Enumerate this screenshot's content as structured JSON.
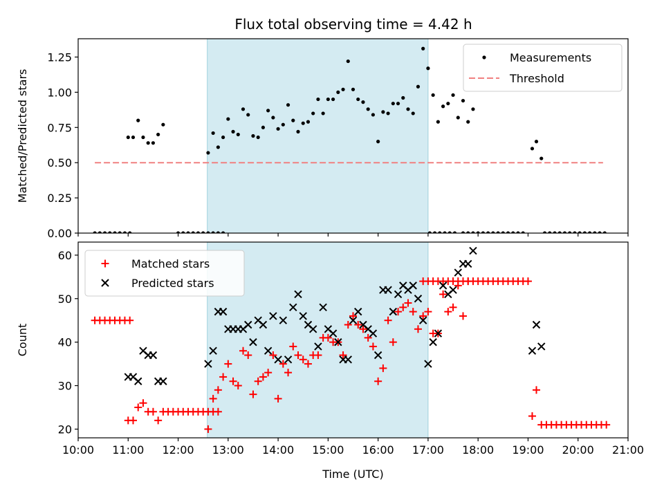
{
  "title": "Flux total observing time = 4.42 h",
  "chart_data": [
    {
      "type": "scatter",
      "ylabel": "Matched/Predicted stars",
      "xlim": [
        "10:00",
        "21:00"
      ],
      "ylim": [
        0,
        1.38
      ],
      "yticks": [
        "0.00",
        "0.25",
        "0.50",
        "0.75",
        "1.00",
        "1.25"
      ],
      "shaded_interval": [
        "12:35",
        "17:00"
      ],
      "legend": [
        "Measurements",
        "Threshold"
      ],
      "legend_position": "top-right",
      "colors": {
        "measurements": "#000000",
        "threshold": "#f08080",
        "shade": "#add8e6"
      },
      "threshold": {
        "value": 0.5,
        "x_range": [
          "10:20",
          "20:30"
        ]
      },
      "measurements": [
        [
          "10:20",
          0
        ],
        [
          "10:26",
          0
        ],
        [
          "10:32",
          0
        ],
        [
          "10:38",
          0
        ],
        [
          "10:44",
          0
        ],
        [
          "10:50",
          0
        ],
        [
          "10:56",
          0
        ],
        [
          "11:02",
          0
        ],
        [
          "11:00",
          0.68
        ],
        [
          "11:06",
          0.68
        ],
        [
          "11:12",
          0.8
        ],
        [
          "11:18",
          0.68
        ],
        [
          "11:24",
          0.64
        ],
        [
          "11:30",
          0.64
        ],
        [
          "11:36",
          0.7
        ],
        [
          "11:42",
          0.77
        ],
        [
          "12:00",
          0
        ],
        [
          "12:06",
          0
        ],
        [
          "12:12",
          0
        ],
        [
          "12:18",
          0
        ],
        [
          "12:24",
          0
        ],
        [
          "12:30",
          0
        ],
        [
          "12:36",
          0
        ],
        [
          "12:42",
          0
        ],
        [
          "12:48",
          0
        ],
        [
          "12:54",
          0
        ],
        [
          "12:36",
          0.57
        ],
        [
          "12:42",
          0.71
        ],
        [
          "12:48",
          0.61
        ],
        [
          "12:54",
          0.68
        ],
        [
          "13:00",
          0.81
        ],
        [
          "13:06",
          0.72
        ],
        [
          "13:12",
          0.7
        ],
        [
          "13:18",
          0.88
        ],
        [
          "13:24",
          0.84
        ],
        [
          "13:30",
          0.69
        ],
        [
          "13:36",
          0.68
        ],
        [
          "13:42",
          0.75
        ],
        [
          "13:48",
          0.87
        ],
        [
          "13:54",
          0.82
        ],
        [
          "14:00",
          0.74
        ],
        [
          "14:06",
          0.77
        ],
        [
          "14:12",
          0.91
        ],
        [
          "14:18",
          0.8
        ],
        [
          "14:24",
          0.72
        ],
        [
          "14:30",
          0.78
        ],
        [
          "14:36",
          0.79
        ],
        [
          "14:42",
          0.85
        ],
        [
          "14:48",
          0.95
        ],
        [
          "14:54",
          0.85
        ],
        [
          "15:00",
          0.95
        ],
        [
          "15:06",
          0.95
        ],
        [
          "15:12",
          1.0
        ],
        [
          "15:18",
          1.02
        ],
        [
          "15:24",
          1.22
        ],
        [
          "15:30",
          1.02
        ],
        [
          "15:36",
          0.95
        ],
        [
          "15:42",
          0.93
        ],
        [
          "15:48",
          0.88
        ],
        [
          "15:54",
          0.84
        ],
        [
          "16:00",
          0.65
        ],
        [
          "16:06",
          0.86
        ],
        [
          "16:12",
          0.85
        ],
        [
          "16:18",
          0.92
        ],
        [
          "16:24",
          0.92
        ],
        [
          "16:30",
          0.96
        ],
        [
          "16:36",
          0.88
        ],
        [
          "16:42",
          0.85
        ],
        [
          "16:48",
          1.04
        ],
        [
          "16:54",
          1.31
        ],
        [
          "17:00",
          1.17
        ],
        [
          "17:06",
          0.98
        ],
        [
          "17:12",
          0.79
        ],
        [
          "17:18",
          0.9
        ],
        [
          "17:24",
          0.92
        ],
        [
          "17:30",
          0.98
        ],
        [
          "17:36",
          0.82
        ],
        [
          "17:42",
          0.94
        ],
        [
          "17:48",
          0.79
        ],
        [
          "17:54",
          0.88
        ],
        [
          "17:02",
          0
        ],
        [
          "17:08",
          0
        ],
        [
          "17:14",
          0
        ],
        [
          "17:20",
          0
        ],
        [
          "17:26",
          0
        ],
        [
          "17:32",
          0
        ],
        [
          "17:42",
          0
        ],
        [
          "17:48",
          0
        ],
        [
          "17:54",
          0
        ],
        [
          "18:00",
          0
        ],
        [
          "18:06",
          0
        ],
        [
          "18:12",
          0
        ],
        [
          "18:18",
          0
        ],
        [
          "18:24",
          0
        ],
        [
          "18:30",
          0
        ],
        [
          "18:36",
          0
        ],
        [
          "18:42",
          0
        ],
        [
          "18:48",
          0
        ],
        [
          "18:54",
          0
        ],
        [
          "19:05",
          0.6
        ],
        [
          "19:10",
          0.65
        ],
        [
          "19:16",
          0.53
        ],
        [
          "19:20",
          0
        ],
        [
          "19:26",
          0
        ],
        [
          "19:32",
          0
        ],
        [
          "19:38",
          0
        ],
        [
          "19:44",
          0
        ],
        [
          "19:50",
          0
        ],
        [
          "19:56",
          0
        ],
        [
          "20:02",
          0
        ],
        [
          "20:08",
          0
        ],
        [
          "20:14",
          0
        ],
        [
          "20:20",
          0
        ],
        [
          "20:26",
          0
        ],
        [
          "20:32",
          0
        ]
      ]
    },
    {
      "type": "scatter",
      "xlabel": "Time (UTC)",
      "ylabel": "Count",
      "xlim": [
        "10:00",
        "21:00"
      ],
      "ylim": [
        18,
        63
      ],
      "yticks": [
        "20",
        "30",
        "40",
        "50",
        "60"
      ],
      "xticks": [
        "10:00",
        "11:00",
        "12:00",
        "13:00",
        "14:00",
        "15:00",
        "16:00",
        "17:00",
        "18:00",
        "19:00",
        "20:00",
        "21:00"
      ],
      "shaded_interval": [
        "12:35",
        "17:00"
      ],
      "legend": [
        "Matched stars",
        "Predicted stars"
      ],
      "legend_position": "top-left",
      "colors": {
        "matched": "#ff0000",
        "predicted": "#000000",
        "shade": "#add8e6"
      },
      "matched": [
        [
          "10:20",
          45
        ],
        [
          "10:26",
          45
        ],
        [
          "10:32",
          45
        ],
        [
          "10:38",
          45
        ],
        [
          "10:44",
          45
        ],
        [
          "10:50",
          45
        ],
        [
          "10:56",
          45
        ],
        [
          "11:02",
          45
        ],
        [
          "11:00",
          22
        ],
        [
          "11:06",
          22
        ],
        [
          "11:12",
          25
        ],
        [
          "11:18",
          26
        ],
        [
          "11:24",
          24
        ],
        [
          "11:30",
          24
        ],
        [
          "11:36",
          22
        ],
        [
          "11:42",
          24
        ],
        [
          "11:48",
          24
        ],
        [
          "11:54",
          24
        ],
        [
          "12:00",
          24
        ],
        [
          "12:06",
          24
        ],
        [
          "12:12",
          24
        ],
        [
          "12:18",
          24
        ],
        [
          "12:24",
          24
        ],
        [
          "12:30",
          24
        ],
        [
          "12:36",
          24
        ],
        [
          "12:42",
          24
        ],
        [
          "12:48",
          24
        ],
        [
          "12:36",
          20
        ],
        [
          "12:42",
          27
        ],
        [
          "12:48",
          29
        ],
        [
          "12:54",
          32
        ],
        [
          "13:00",
          35
        ],
        [
          "13:06",
          31
        ],
        [
          "13:12",
          30
        ],
        [
          "13:18",
          38
        ],
        [
          "13:24",
          37
        ],
        [
          "13:30",
          28
        ],
        [
          "13:36",
          31
        ],
        [
          "13:42",
          32
        ],
        [
          "13:48",
          33
        ],
        [
          "13:54",
          37
        ],
        [
          "14:00",
          27
        ],
        [
          "14:06",
          35
        ],
        [
          "14:12",
          33
        ],
        [
          "14:18",
          39
        ],
        [
          "14:24",
          37
        ],
        [
          "14:30",
          36
        ],
        [
          "14:36",
          35
        ],
        [
          "14:42",
          37
        ],
        [
          "14:48",
          37
        ],
        [
          "14:54",
          41
        ],
        [
          "15:00",
          41
        ],
        [
          "15:06",
          40
        ],
        [
          "15:12",
          40
        ],
        [
          "15:18",
          37
        ],
        [
          "15:24",
          44
        ],
        [
          "15:30",
          46
        ],
        [
          "15:36",
          44
        ],
        [
          "15:42",
          43
        ],
        [
          "15:48",
          41
        ],
        [
          "15:54",
          39
        ],
        [
          "16:00",
          31
        ],
        [
          "16:06",
          34
        ],
        [
          "16:12",
          45
        ],
        [
          "16:18",
          40
        ],
        [
          "16:24",
          47
        ],
        [
          "16:30",
          48
        ],
        [
          "16:36",
          49
        ],
        [
          "16:42",
          47
        ],
        [
          "16:48",
          43
        ],
        [
          "16:54",
          46
        ],
        [
          "17:00",
          47
        ],
        [
          "17:06",
          42
        ],
        [
          "17:12",
          42
        ],
        [
          "17:18",
          51
        ],
        [
          "17:24",
          47
        ],
        [
          "17:30",
          48
        ],
        [
          "17:36",
          53
        ],
        [
          "17:42",
          46
        ],
        [
          "17:48",
          54
        ],
        [
          "16:54",
          54
        ],
        [
          "17:00",
          54
        ],
        [
          "17:06",
          54
        ],
        [
          "17:12",
          54
        ],
        [
          "17:18",
          54
        ],
        [
          "17:24",
          54
        ],
        [
          "17:30",
          54
        ],
        [
          "17:36",
          54
        ],
        [
          "17:42",
          54
        ],
        [
          "17:48",
          54
        ],
        [
          "17:54",
          54
        ],
        [
          "18:00",
          54
        ],
        [
          "18:06",
          54
        ],
        [
          "18:12",
          54
        ],
        [
          "18:18",
          54
        ],
        [
          "18:24",
          54
        ],
        [
          "18:30",
          54
        ],
        [
          "18:36",
          54
        ],
        [
          "18:42",
          54
        ],
        [
          "18:48",
          54
        ],
        [
          "18:54",
          54
        ],
        [
          "19:00",
          54
        ],
        [
          "19:05",
          23
        ],
        [
          "19:10",
          29
        ],
        [
          "19:16",
          21
        ],
        [
          "19:22",
          21
        ],
        [
          "19:28",
          21
        ],
        [
          "19:34",
          21
        ],
        [
          "19:40",
          21
        ],
        [
          "19:46",
          21
        ],
        [
          "19:52",
          21
        ],
        [
          "19:58",
          21
        ],
        [
          "20:04",
          21
        ],
        [
          "20:10",
          21
        ],
        [
          "20:16",
          21
        ],
        [
          "20:22",
          21
        ],
        [
          "20:28",
          21
        ],
        [
          "20:34",
          21
        ]
      ],
      "predicted": [
        [
          "11:00",
          32
        ],
        [
          "11:06",
          32
        ],
        [
          "11:12",
          31
        ],
        [
          "11:18",
          38
        ],
        [
          "11:24",
          37
        ],
        [
          "11:30",
          37
        ],
        [
          "11:36",
          31
        ],
        [
          "11:42",
          31
        ],
        [
          "12:36",
          35
        ],
        [
          "12:42",
          38
        ],
        [
          "12:48",
          47
        ],
        [
          "12:54",
          47
        ],
        [
          "13:00",
          43
        ],
        [
          "13:06",
          43
        ],
        [
          "13:12",
          43
        ],
        [
          "13:18",
          43
        ],
        [
          "13:24",
          44
        ],
        [
          "13:30",
          40
        ],
        [
          "13:36",
          45
        ],
        [
          "13:42",
          44
        ],
        [
          "13:48",
          38
        ],
        [
          "13:54",
          46
        ],
        [
          "14:00",
          36
        ],
        [
          "14:06",
          45
        ],
        [
          "14:12",
          36
        ],
        [
          "14:18",
          48
        ],
        [
          "14:24",
          51
        ],
        [
          "14:30",
          46
        ],
        [
          "14:36",
          44
        ],
        [
          "14:42",
          43
        ],
        [
          "14:48",
          39
        ],
        [
          "14:54",
          48
        ],
        [
          "15:00",
          43
        ],
        [
          "15:06",
          42
        ],
        [
          "15:12",
          40
        ],
        [
          "15:18",
          36
        ],
        [
          "15:24",
          36
        ],
        [
          "15:30",
          45
        ],
        [
          "15:36",
          47
        ],
        [
          "15:42",
          44
        ],
        [
          "15:48",
          43
        ],
        [
          "15:54",
          42
        ],
        [
          "16:00",
          37
        ],
        [
          "16:06",
          52
        ],
        [
          "16:12",
          52
        ],
        [
          "16:18",
          47
        ],
        [
          "16:24",
          51
        ],
        [
          "16:30",
          53
        ],
        [
          "16:36",
          52
        ],
        [
          "16:42",
          53
        ],
        [
          "16:48",
          50
        ],
        [
          "16:54",
          45
        ],
        [
          "17:00",
          35
        ],
        [
          "17:06",
          40
        ],
        [
          "17:12",
          42
        ],
        [
          "17:18",
          53
        ],
        [
          "17:24",
          51
        ],
        [
          "17:30",
          52
        ],
        [
          "17:36",
          56
        ],
        [
          "17:42",
          58
        ],
        [
          "17:48",
          58
        ],
        [
          "17:54",
          61
        ],
        [
          "19:05",
          38
        ],
        [
          "19:10",
          44
        ],
        [
          "19:16",
          39
        ]
      ]
    }
  ]
}
